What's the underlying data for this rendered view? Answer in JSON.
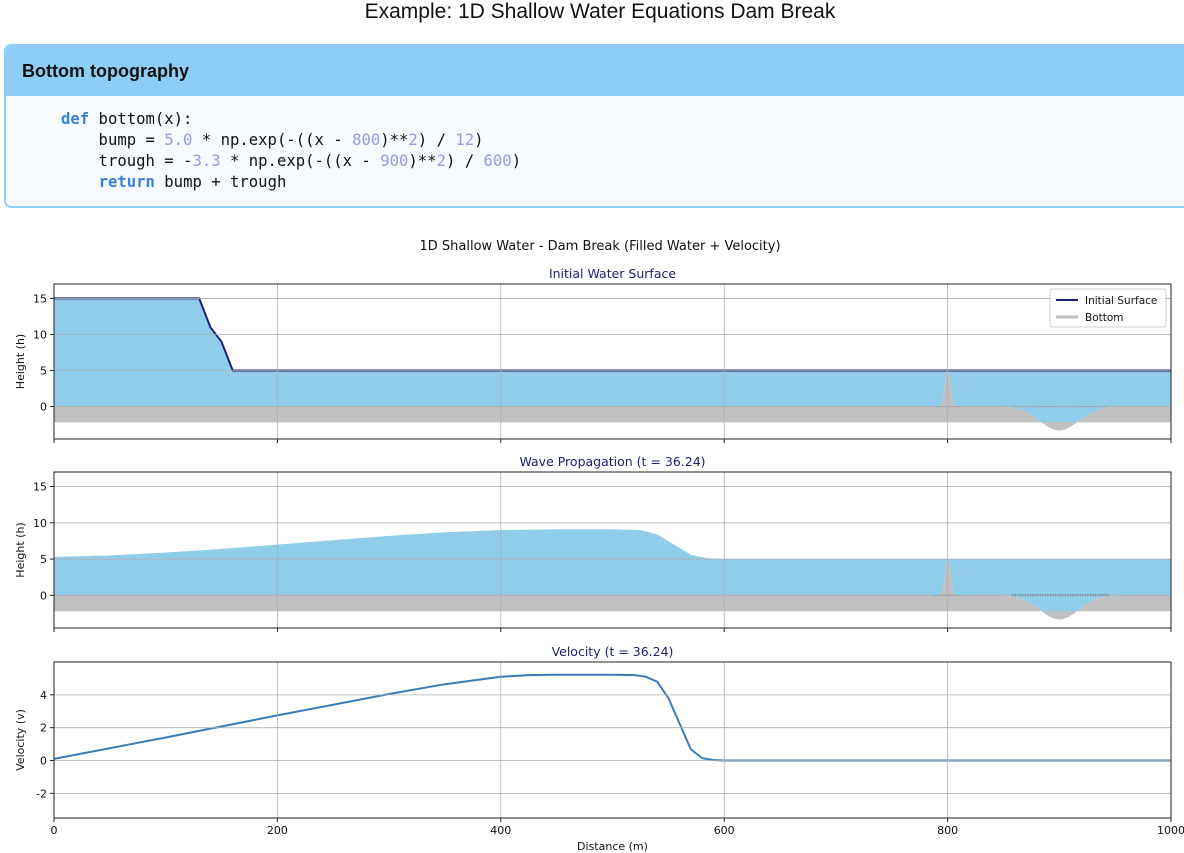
{
  "page": {
    "title": "Example: 1D Shallow Water Equations Dam Break"
  },
  "code_block": {
    "heading": "Bottom topography",
    "lines": [
      [
        {
          "t": "def",
          "c": "kw"
        },
        {
          "t": " bottom(x):"
        }
      ],
      [
        {
          "t": "    bump = "
        },
        {
          "t": "5.0",
          "c": "num"
        },
        {
          "t": " * np.exp(-((x - "
        },
        {
          "t": "800",
          "c": "num"
        },
        {
          "t": ")**"
        },
        {
          "t": "2",
          "c": "num"
        },
        {
          "t": ") / "
        },
        {
          "t": "12",
          "c": "num"
        },
        {
          "t": ")"
        }
      ],
      [
        {
          "t": "    trough = -"
        },
        {
          "t": "3.3",
          "c": "num"
        },
        {
          "t": " * np.exp(-((x - "
        },
        {
          "t": "900",
          "c": "num"
        },
        {
          "t": ")**"
        },
        {
          "t": "2",
          "c": "num"
        },
        {
          "t": ") / "
        },
        {
          "t": "600",
          "c": "num"
        },
        {
          "t": ")"
        }
      ],
      [
        {
          "t": "    "
        },
        {
          "t": "return",
          "c": "kw"
        },
        {
          "t": " bump + trough"
        }
      ]
    ]
  },
  "chart_data": {
    "suptitle": "1D Shallow Water - Dam Break (Filled Water + Velocity)",
    "colors": {
      "water": "#90cdea",
      "bottom": "#c0c0c0",
      "surface_line": "#1c1f70",
      "velocity_line": "#3a7cb8",
      "grid": "#b0b0b0",
      "title_text": "#1c1f70"
    },
    "xlim": [
      0,
      1000
    ],
    "xticks": [
      0,
      200,
      400,
      600,
      800,
      1000
    ],
    "xlabel": "Distance (m)",
    "panels": [
      {
        "id": "initial",
        "type": "area",
        "title": "Initial Water Surface",
        "ylabel": "Height (h)",
        "ylim": [
          -4.5,
          17
        ],
        "yticks": [
          0,
          5,
          10,
          15
        ],
        "grid": true,
        "legend": {
          "placement": "top-right",
          "entries": [
            {
              "label": "Initial Surface",
              "color": "#1c1f70"
            },
            {
              "label": "Bottom",
              "color": "#c0c0c0"
            }
          ]
        },
        "surface": {
          "name": "Initial Surface",
          "x": [
            0,
            130,
            140,
            150,
            160,
            1000
          ],
          "y": [
            15,
            15,
            11,
            9,
            5,
            5
          ]
        }
      },
      {
        "id": "wave",
        "type": "area",
        "title": "Wave Propagation (t = 36.24)",
        "ylabel": "Height (h)",
        "ylim": [
          -4.5,
          17
        ],
        "yticks": [
          0,
          5,
          10,
          15
        ],
        "grid": true,
        "surface": {
          "x": [
            0,
            50,
            100,
            150,
            200,
            250,
            300,
            350,
            400,
            450,
            500,
            525,
            540,
            555,
            570,
            585,
            600,
            1000
          ],
          "y": [
            5.3,
            5.5,
            5.9,
            6.4,
            7.0,
            7.6,
            8.2,
            8.7,
            9.0,
            9.1,
            9.1,
            9.0,
            8.4,
            7.0,
            5.6,
            5.1,
            5.0,
            5.0
          ]
        }
      },
      {
        "id": "velocity",
        "type": "line",
        "title": "Velocity (t = 36.24)",
        "ylabel": "Velocity (v)",
        "ylim": [
          -3.5,
          6.0
        ],
        "yticks": [
          -2,
          0,
          2,
          4
        ],
        "grid": true,
        "series": {
          "x": [
            0,
            100,
            200,
            300,
            350,
            400,
            425,
            450,
            500,
            520,
            530,
            540,
            550,
            570,
            580,
            590,
            600,
            1000
          ],
          "y": [
            0.1,
            1.4,
            2.75,
            4.05,
            4.65,
            5.1,
            5.2,
            5.22,
            5.22,
            5.2,
            5.1,
            4.8,
            3.8,
            0.7,
            0.15,
            0.03,
            0.0,
            0.0
          ]
        }
      }
    ]
  }
}
